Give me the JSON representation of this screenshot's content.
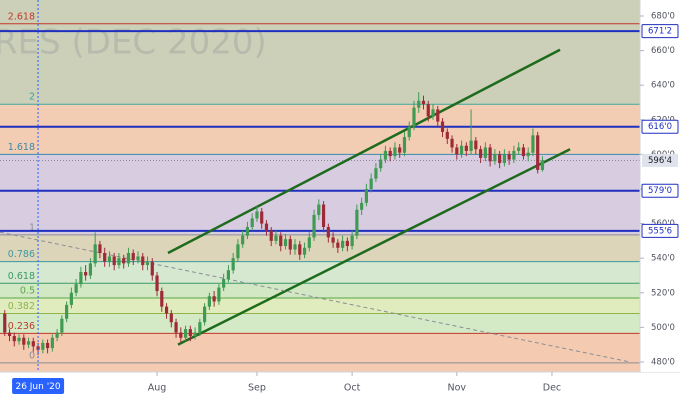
{
  "chart_data": {
    "type": "candlestick",
    "watermark": "RES (DEC 2020)",
    "xlim": [
      -8,
      126.5
    ],
    "ylim": [
      474.2,
      689.25
    ],
    "xticks": [
      {
        "value": 25,
        "label": "Aug"
      },
      {
        "value": 46,
        "label": "Sep"
      },
      {
        "value": 66,
        "label": "Oct"
      },
      {
        "value": 88,
        "label": "Nov"
      },
      {
        "value": 108,
        "label": "Dec"
      }
    ],
    "yticks": [
      {
        "value": 480,
        "label": "480'0"
      },
      {
        "value": 500,
        "label": "500'0"
      },
      {
        "value": 520,
        "label": "520'0"
      },
      {
        "value": 540,
        "label": "540'0"
      },
      {
        "value": 560,
        "label": "560'0"
      },
      {
        "value": 580,
        "label": "580'0"
      },
      {
        "value": 600,
        "label": "600'0"
      },
      {
        "value": 620,
        "label": "620'0"
      },
      {
        "value": 640,
        "label": "640'0"
      },
      {
        "value": 660,
        "label": "660'0"
      },
      {
        "value": 680,
        "label": "680'0"
      }
    ],
    "cursor": {
      "x": 0,
      "label": "26 Jun '20"
    },
    "up_color": "#3f9a52",
    "down_color": "#9e2a38",
    "x": [
      -7,
      -6,
      -5,
      -4,
      -3,
      -2,
      -1,
      0,
      1,
      2,
      3,
      4,
      5,
      6,
      7,
      8,
      9,
      10,
      11,
      12,
      13,
      14,
      15,
      16,
      17,
      18,
      19,
      20,
      21,
      22,
      23,
      24,
      25,
      26,
      27,
      28,
      29,
      30,
      31,
      32,
      33,
      34,
      35,
      36,
      37,
      38,
      39,
      40,
      41,
      42,
      43,
      44,
      45,
      46,
      47,
      48,
      49,
      50,
      51,
      52,
      53,
      54,
      55,
      56,
      57,
      58,
      59,
      60,
      61,
      62,
      63,
      64,
      65,
      66,
      67,
      68,
      69,
      70,
      71,
      72,
      73,
      74,
      75,
      76,
      77,
      78,
      79,
      80,
      81,
      82,
      83,
      84,
      85,
      86,
      87,
      88,
      89,
      90,
      91,
      92,
      93,
      94,
      95,
      96,
      97,
      98,
      99,
      100,
      101,
      102,
      103,
      104,
      105,
      106
    ],
    "open": [
      508,
      497,
      495,
      492,
      494,
      490,
      492,
      489,
      487,
      491,
      488,
      494,
      497,
      505,
      513,
      520,
      525,
      532,
      530,
      537,
      548,
      543,
      538,
      541,
      536,
      540,
      537,
      543,
      539,
      541,
      536,
      538,
      530,
      521,
      512,
      508,
      503,
      497,
      494,
      499,
      495,
      497,
      503,
      512,
      518,
      515,
      523,
      528,
      533,
      540,
      548,
      553,
      558,
      563,
      567,
      560,
      556,
      550,
      553,
      547,
      551,
      545,
      548,
      542,
      546,
      552,
      565,
      571,
      558,
      552,
      549,
      546,
      550,
      547,
      553,
      568,
      572,
      580,
      586,
      592,
      597,
      602,
      599,
      604,
      601,
      610,
      616,
      627,
      631,
      629,
      622,
      626,
      619,
      613,
      609,
      604,
      600,
      605,
      602,
      608,
      603,
      598,
      604,
      596,
      600,
      595,
      600,
      597,
      602,
      604,
      599,
      601,
      611,
      591
    ],
    "high": [
      510,
      499,
      497,
      496,
      496,
      494,
      494,
      491,
      493,
      493,
      496,
      499,
      507,
      515,
      523,
      528,
      535,
      536,
      540,
      555,
      550,
      546,
      544,
      543,
      543,
      542,
      546,
      545,
      544,
      543,
      541,
      540,
      532,
      523,
      514,
      510,
      505,
      500,
      501,
      501,
      500,
      505,
      514,
      520,
      521,
      525,
      531,
      536,
      543,
      551,
      556,
      561,
      566,
      570,
      569,
      562,
      558,
      556,
      555,
      554,
      553,
      551,
      550,
      549,
      555,
      568,
      574,
      573,
      560,
      555,
      551,
      553,
      552,
      556,
      571,
      575,
      583,
      589,
      595,
      600,
      605,
      604,
      607,
      606,
      613,
      619,
      631,
      636,
      634,
      631,
      629,
      628,
      621,
      615,
      611,
      606,
      608,
      607,
      626,
      610,
      605,
      607,
      606,
      603,
      602,
      603,
      602,
      605,
      607,
      606,
      604,
      615,
      613,
      599
    ],
    "low": [
      495,
      492,
      489,
      490,
      487,
      488,
      486,
      484,
      485,
      485,
      486,
      492,
      495,
      503,
      511,
      518,
      523,
      527,
      528,
      535,
      540,
      535,
      535,
      533,
      534,
      534,
      535,
      536,
      537,
      533,
      533,
      527,
      518,
      509,
      505,
      500,
      494,
      491,
      492,
      492,
      493,
      495,
      501,
      510,
      512,
      513,
      521,
      526,
      531,
      538,
      546,
      551,
      556,
      561,
      557,
      553,
      547,
      548,
      544,
      545,
      542,
      542,
      539,
      540,
      544,
      550,
      562,
      555,
      549,
      546,
      543,
      544,
      544,
      545,
      551,
      565,
      570,
      578,
      584,
      590,
      595,
      596,
      597,
      598,
      599,
      608,
      614,
      624,
      626,
      619,
      620,
      616,
      610,
      606,
      601,
      597,
      598,
      599,
      600,
      600,
      595,
      596,
      593,
      594,
      592,
      593,
      594,
      595,
      600,
      597,
      596,
      599,
      589,
      590
    ],
    "close": [
      497,
      495,
      492,
      494,
      490,
      492,
      489,
      487,
      491,
      488,
      494,
      497,
      505,
      513,
      520,
      525,
      532,
      530,
      537,
      548,
      543,
      538,
      541,
      536,
      540,
      537,
      543,
      539,
      541,
      536,
      538,
      530,
      521,
      512,
      508,
      503,
      497,
      494,
      499,
      495,
      497,
      503,
      512,
      518,
      515,
      523,
      528,
      533,
      540,
      548,
      553,
      558,
      563,
      567,
      560,
      556,
      550,
      553,
      547,
      551,
      545,
      548,
      542,
      546,
      552,
      565,
      571,
      558,
      552,
      549,
      546,
      550,
      547,
      553,
      568,
      572,
      580,
      586,
      592,
      597,
      602,
      599,
      604,
      601,
      610,
      616,
      627,
      631,
      629,
      622,
      626,
      619,
      613,
      609,
      604,
      600,
      605,
      602,
      608,
      603,
      598,
      604,
      596,
      600,
      595,
      600,
      597,
      602,
      604,
      599,
      601,
      611,
      591,
      596.5
    ],
    "fib_levels": [
      {
        "label": "0",
        "value": 479.5,
        "color": "#8a8d96",
        "fill": "#f4cbb0"
      },
      {
        "label": "0.236",
        "value": 496.5,
        "color": "#c0392b",
        "fill": "#d4e9c6"
      },
      {
        "label": "0.382",
        "value": 508,
        "color": "#8fb54a",
        "fill": "#e0ecbd"
      },
      {
        "label": "0.5",
        "value": 517,
        "color": "#5aa846",
        "fill": "#d2e8c4"
      },
      {
        "label": "0.618",
        "value": 525.5,
        "color": "#3a9a6a",
        "fill": "#d6e8d0"
      },
      {
        "label": "0.786",
        "value": 538,
        "color": "#3a9aa0",
        "fill": "#ddd5ba"
      },
      {
        "label": "1",
        "value": 553.5,
        "color": "#8a8d96",
        "fill": "#d8cde0"
      },
      {
        "label": "1.618",
        "value": 600,
        "color": "#3a8aa8",
        "fill": "#f2cdb4"
      },
      {
        "label": "2",
        "value": 629,
        "color": "#3aa8a0",
        "fill": "#cdd0b8"
      },
      {
        "label": "2.618",
        "value": 675.5,
        "color": "#c0392b",
        "fill": "#cdd0b8"
      }
    ],
    "price_lines": [
      {
        "value": 671.25,
        "label": "671'2",
        "color": "#1f2fbf"
      },
      {
        "value": 616,
        "label": "616'0",
        "color": "#1f2fbf"
      },
      {
        "value": 579,
        "label": "579'0",
        "color": "#1f2fbf"
      },
      {
        "value": 555.75,
        "label": "555'6",
        "color": "#1f2fbf"
      }
    ],
    "last_price": {
      "value": 596.5,
      "label": "596'4"
    },
    "trendlines": [
      {
        "x": [
          27.3,
          109.7
        ],
        "y": [
          543,
          660.5
        ],
        "color": "#1e6b1e",
        "dashed": false
      },
      {
        "x": [
          29.4,
          111.8
        ],
        "y": [
          490,
          603
        ],
        "color": "#1e6b1e",
        "dashed": false
      },
      {
        "x": [
          -8,
          124.4
        ],
        "y": [
          555,
          480
        ],
        "color": "#8a8d96",
        "dashed": true
      }
    ]
  }
}
